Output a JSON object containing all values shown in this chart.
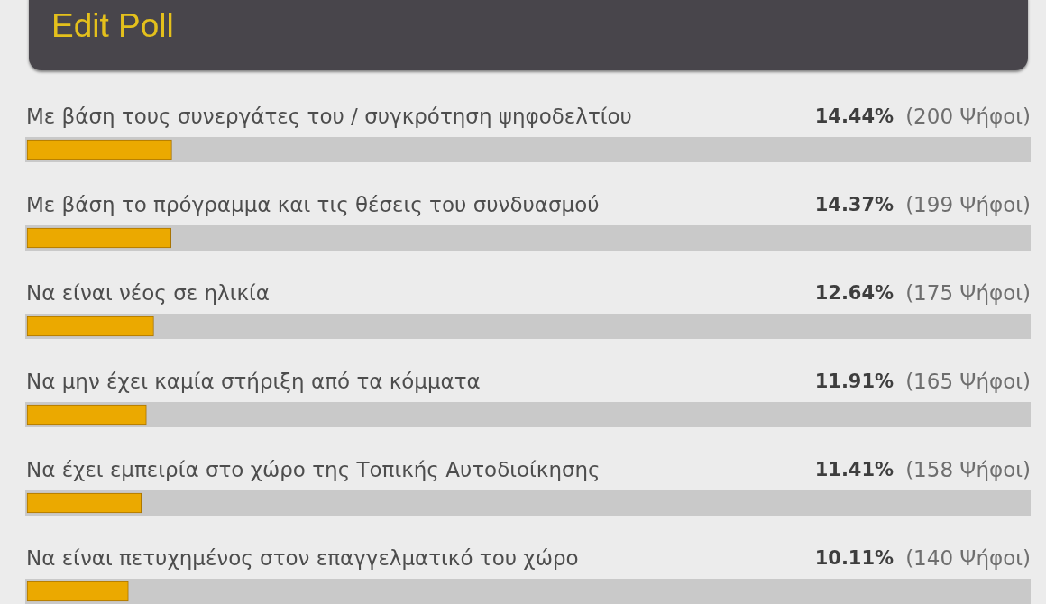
{
  "chart_data": {
    "type": "bar",
    "orientation": "horizontal",
    "title": "Edit Poll",
    "categories": [
      "Με βάση τους συνεργάτες του / συγκρότηση ψηφοδελτίου",
      "Με βάση το πρόγραμμα και τις θέσεις του συνδυασμού",
      "Να είναι νέος σε ηλικία",
      "Να μην έχει καμία στήριξη από τα κόμματα",
      "Να έχει εμπειρία στο χώρο της Τοπικής Αυτοδιοίκησης",
      "Να είναι πετυχημένος στον επαγγελματικό του χώρο"
    ],
    "values": [
      14.44,
      14.37,
      12.64,
      11.91,
      11.41,
      10.11
    ],
    "value_labels": [
      "14.44% (200 Ψήφοι)",
      "14.37% (199 Ψήφοι)",
      "12.64% (175 Ψήφοι)",
      "11.91% (165 Ψήφοι)",
      "11.41% (158 Ψήφοι)",
      "10.11% (140 Ψήφοι)"
    ],
    "color": "#eba900",
    "xlim": [
      0,
      100
    ],
    "tick_labels": "y",
    "grid": false
  }
}
